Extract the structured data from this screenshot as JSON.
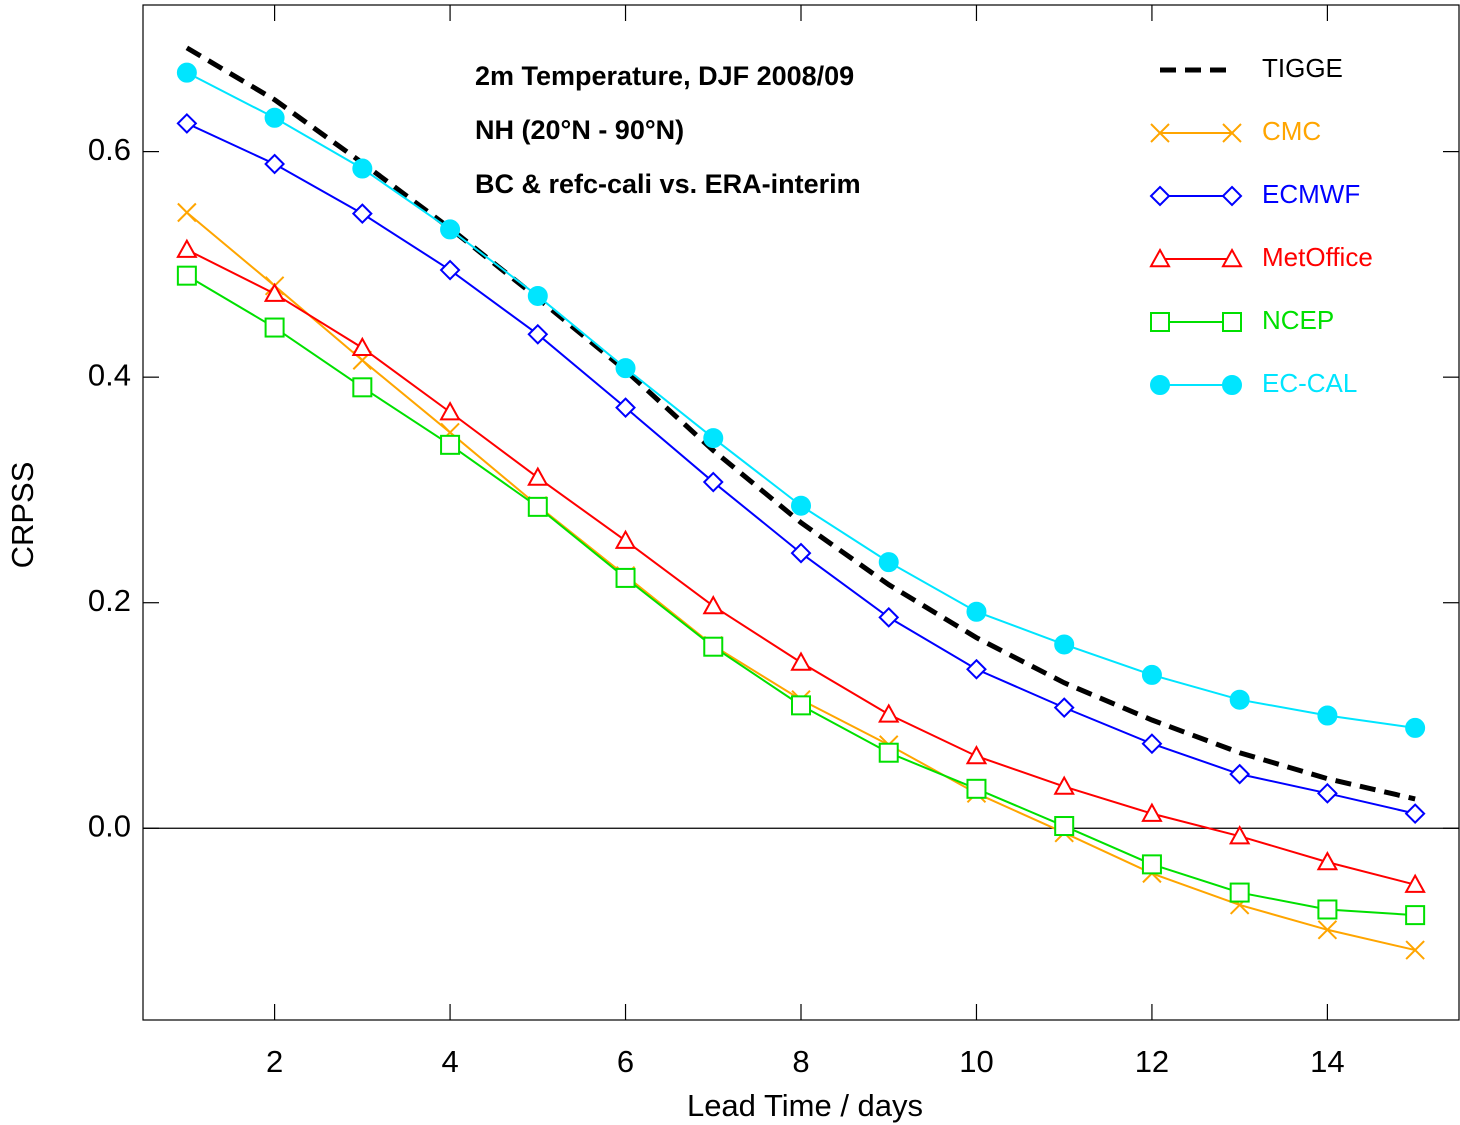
{
  "chart_data": {
    "type": "line",
    "title_lines": [
      "2m Temperature, DJF 2008/09",
      "NH (20°N - 90°N)",
      "BC & refc-cali vs. ERA-interim"
    ],
    "x_label": "Lead Time / days",
    "y_label": "CRPSS",
    "x": [
      1,
      2,
      3,
      4,
      5,
      6,
      7,
      8,
      9,
      10,
      11,
      12,
      13,
      14,
      15
    ],
    "series": [
      {
        "name": "TIGGE",
        "color": "#000000",
        "dashed": true,
        "marker": "none",
        "values": [
          0.692,
          0.646,
          0.59,
          0.532,
          0.47,
          0.406,
          0.335,
          0.271,
          0.216,
          0.169,
          0.129,
          0.096,
          0.067,
          0.044,
          0.026
        ]
      },
      {
        "name": "CMC",
        "color": "#ffa500",
        "marker": "x",
        "values": [
          0.546,
          0.481,
          0.415,
          0.351,
          0.286,
          0.224,
          0.162,
          0.114,
          0.074,
          0.031,
          -0.004,
          -0.04,
          -0.068,
          -0.09,
          -0.108
        ]
      },
      {
        "name": "ECMWF",
        "color": "#0000ff",
        "marker": "diamond",
        "values": [
          0.625,
          0.589,
          0.545,
          0.495,
          0.438,
          0.373,
          0.307,
          0.244,
          0.187,
          0.141,
          0.107,
          0.075,
          0.048,
          0.031,
          0.013
        ]
      },
      {
        "name": "MetOffice",
        "color": "#ff0000",
        "marker": "triangle",
        "values": [
          0.513,
          0.474,
          0.426,
          0.369,
          0.311,
          0.255,
          0.197,
          0.147,
          0.101,
          0.064,
          0.037,
          0.013,
          -0.007,
          -0.03,
          -0.05
        ]
      },
      {
        "name": "NCEP",
        "color": "#00e000",
        "marker": "square",
        "values": [
          0.49,
          0.444,
          0.391,
          0.34,
          0.285,
          0.222,
          0.161,
          0.109,
          0.067,
          0.035,
          0.002,
          -0.032,
          -0.057,
          -0.072,
          -0.077
        ]
      },
      {
        "name": "EC-CAL",
        "color": "#00e5ff",
        "marker": "circle",
        "values": [
          0.67,
          0.63,
          0.585,
          0.531,
          0.472,
          0.408,
          0.346,
          0.286,
          0.236,
          0.192,
          0.163,
          0.136,
          0.114,
          0.1,
          0.089
        ]
      }
    ],
    "xlim": [
      0.5,
      15.5
    ],
    "ylim": [
      -0.17,
      0.73
    ],
    "xticks": [
      2,
      4,
      6,
      8,
      10,
      12,
      14
    ],
    "yticks": [
      {
        "value": 0,
        "label": "0.0"
      },
      {
        "value": 0.2,
        "label": "0.2"
      },
      {
        "value": 0.4,
        "label": "0.4"
      },
      {
        "value": 0.6,
        "label": "0.6"
      }
    ],
    "zero_line": true,
    "legend": "upper right"
  }
}
